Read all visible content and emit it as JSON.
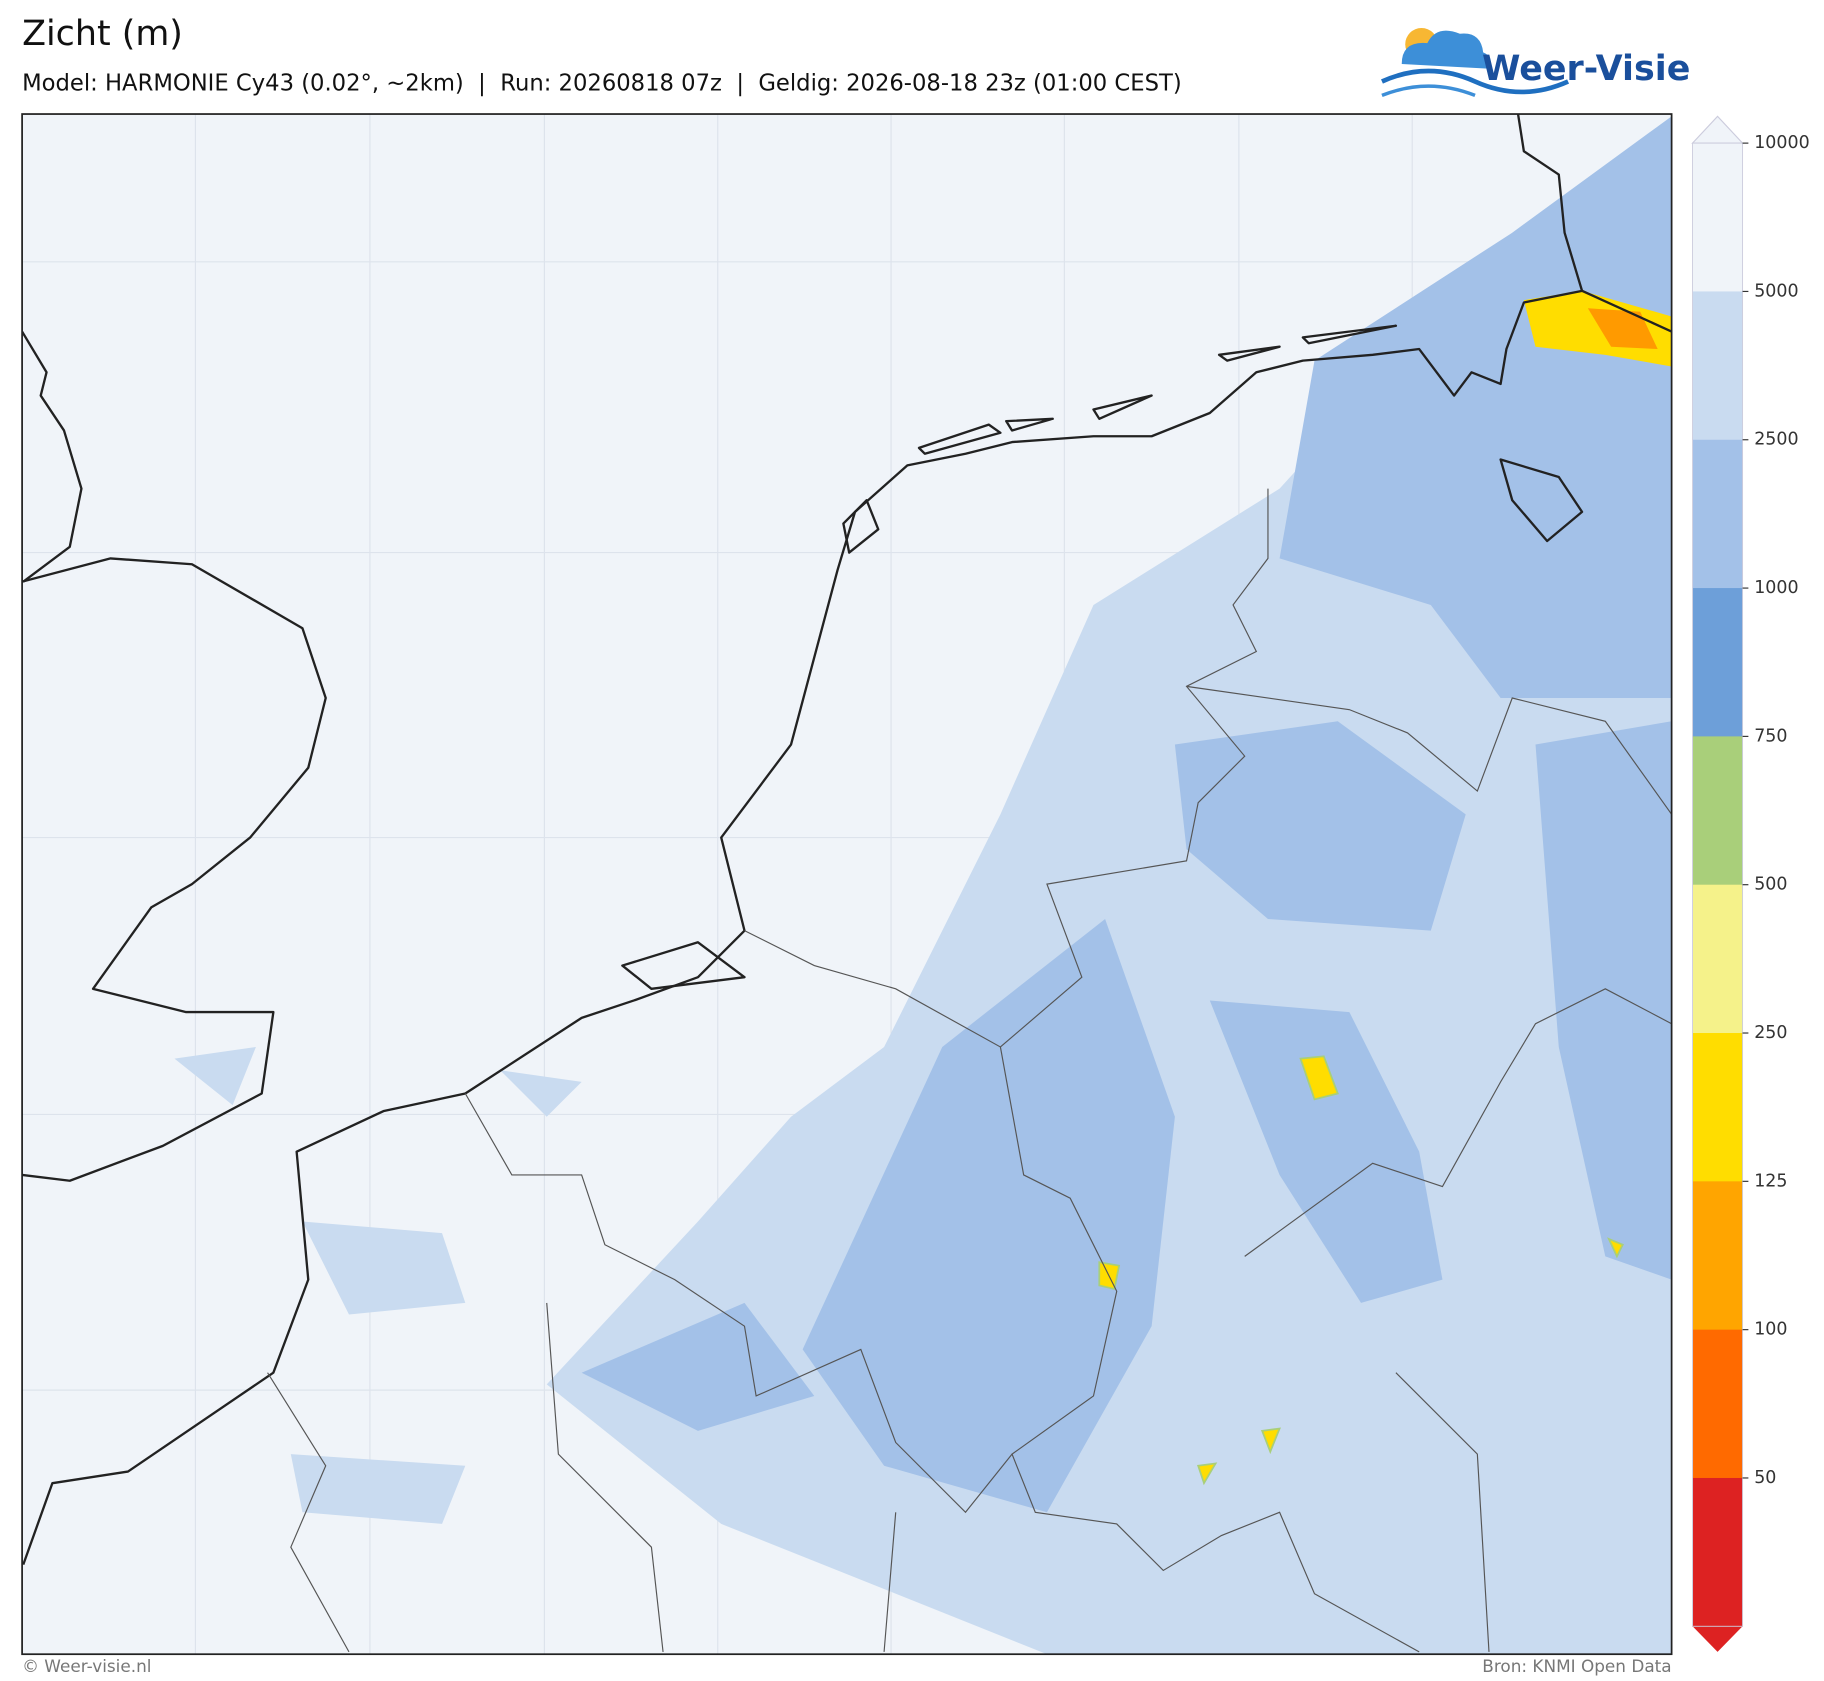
{
  "header": {
    "title": "Zicht (m)",
    "subtitle": "Model: HARMONIE Cy43 (0.02°, ~2km)  |  Run: 20260818 07z  |  Geldig: 2026-08-18 23z (01:00 CEST)"
  },
  "logo": {
    "text": "Weer-Visie"
  },
  "colorbar": {
    "ticks": [
      10000,
      5000,
      2500,
      1000,
      750,
      500,
      250,
      125,
      100,
      50
    ],
    "colors": [
      "#f0f4f9",
      "#c9dbf0",
      "#a3c1e8",
      "#6d9fd9",
      "#a9cf7a",
      "#f5f28a",
      "#ffdd00",
      "#ffa500",
      "#ff6a00",
      "#dd2222"
    ]
  },
  "footer": {
    "credit": "© Weer-visie.nl",
    "source": "Bron: KNMI Open Data"
  }
}
